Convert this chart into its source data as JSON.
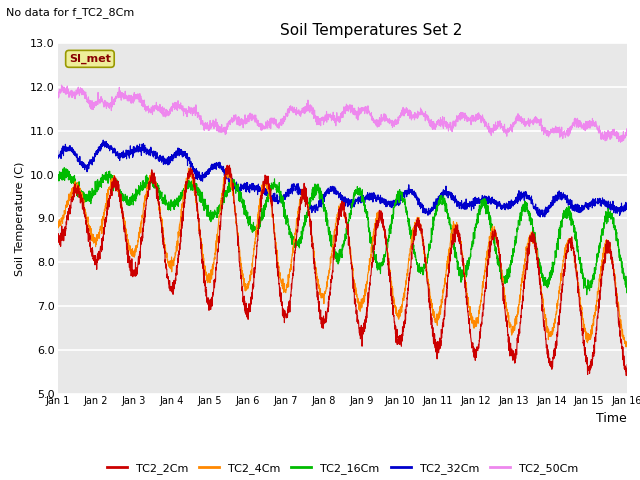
{
  "title": "Soil Temperatures Set 2",
  "xlabel": "Time",
  "ylabel": "Soil Temperature (C)",
  "ylim": [
    5.0,
    13.0
  ],
  "yticks": [
    5.0,
    6.0,
    7.0,
    8.0,
    9.0,
    10.0,
    11.0,
    12.0,
    13.0
  ],
  "xlim": [
    0,
    15
  ],
  "xtick_labels": [
    "Jan 1",
    "Jan 2",
    "Jan 3",
    "Jan 4",
    "Jan 5",
    "Jan 6",
    "Jan 7",
    "Jan 8",
    "Jan 9",
    "Jan 10",
    "Jan 11",
    "Jan 12",
    "Jan 13",
    "Jan 14",
    "Jan 15",
    "Jan 16"
  ],
  "no_data_text": "No data for f_TC2_8Cm",
  "annotation_text": "SI_met",
  "fig_facecolor": "#ffffff",
  "plot_bg_color": "#e8e8e8",
  "colors": {
    "TC2_2Cm": "#cc0000",
    "TC2_4Cm": "#ff8800",
    "TC2_16Cm": "#00bb00",
    "TC2_32Cm": "#0000cc",
    "TC2_50Cm": "#ee88ee"
  },
  "legend_labels": [
    "TC2_2Cm",
    "TC2_4Cm",
    "TC2_16Cm",
    "TC2_32Cm",
    "TC2_50Cm"
  ]
}
